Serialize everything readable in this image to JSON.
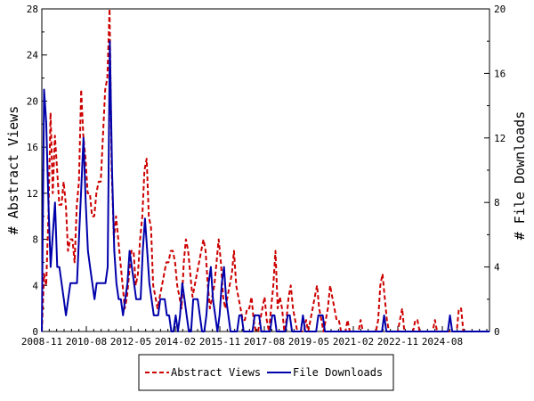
{
  "chart_data": {
    "type": "line",
    "ylabel": "# Abstract Views",
    "y2label": "# File Downloads",
    "x_tick_labels": [
      "2008-11",
      "2010-08",
      "2012-05",
      "2014-02",
      "2015-11",
      "2017-08",
      "2019-05",
      "2021-02",
      "2022-11",
      "2024-08"
    ],
    "y_ticks": [
      "0",
      "4",
      "8",
      "12",
      "16",
      "20",
      "24",
      "28"
    ],
    "y2_ticks": [
      "0",
      "4",
      "8",
      "12",
      "16",
      "20"
    ],
    "ylim": [
      0,
      28
    ],
    "y2lim": [
      0,
      20
    ],
    "xlim": [
      0,
      200
    ],
    "grid": false,
    "legend_position": "bottom",
    "series": [
      {
        "name": "Abstract Views",
        "axis": "left",
        "color": "#cc0000",
        "style": "dashed",
        "values": [
          0,
          5,
          4,
          10,
          19,
          12,
          17,
          14,
          11,
          11,
          13,
          11,
          7,
          8,
          8,
          6,
          11,
          13,
          21,
          17,
          15,
          12,
          12,
          10,
          10,
          12,
          13,
          13,
          17,
          21,
          22,
          28,
          14,
          8,
          10,
          8,
          6,
          4,
          2,
          3,
          5,
          7,
          7,
          4,
          5,
          8,
          10,
          14,
          15,
          10,
          9,
          4,
          3,
          2,
          3,
          4,
          5,
          6,
          6,
          7,
          7,
          6,
          4,
          3,
          2,
          6,
          8,
          7,
          5,
          3,
          4,
          5,
          6,
          7,
          8,
          7,
          4,
          2,
          3,
          4,
          6,
          8,
          6,
          3,
          2,
          3,
          4,
          5,
          7,
          4,
          3,
          2,
          1,
          1,
          2,
          2,
          3,
          1,
          0,
          0,
          1,
          2,
          3,
          1,
          0,
          2,
          4,
          7,
          2,
          3,
          2,
          0,
          1,
          3,
          4,
          2,
          1,
          0,
          0,
          0,
          0,
          1,
          0,
          1,
          2,
          3,
          4,
          2,
          1,
          0,
          1,
          2,
          4,
          3,
          2,
          1,
          1,
          0,
          0,
          0,
          1,
          0,
          0,
          0,
          0,
          0,
          1,
          0,
          0,
          0,
          0,
          0,
          0,
          0,
          1,
          4,
          5,
          3,
          1,
          0,
          0,
          0,
          0,
          0,
          1,
          2,
          0,
          0,
          0,
          0,
          0,
          1,
          1,
          0,
          0,
          0,
          0,
          0,
          0,
          0,
          1,
          0,
          0,
          0,
          0,
          0,
          0,
          0,
          0,
          0,
          0,
          2,
          2,
          0,
          0,
          0,
          0,
          0,
          0,
          0,
          0,
          0,
          0,
          0,
          0,
          0
        ]
      },
      {
        "name": "File Downloads",
        "axis": "right",
        "color": "#0000aa",
        "style": "solid",
        "values": [
          0,
          15,
          13,
          8,
          4,
          6,
          8,
          4,
          4,
          3,
          2,
          1,
          2,
          3,
          3,
          3,
          3,
          6,
          9,
          12,
          8,
          5,
          4,
          3,
          2,
          3,
          3,
          3,
          3,
          3,
          4,
          18,
          10,
          5,
          3,
          2,
          2,
          1,
          2,
          3,
          5,
          4,
          3,
          2,
          2,
          2,
          5,
          7,
          5,
          3,
          2,
          1,
          1,
          1,
          2,
          2,
          2,
          1,
          1,
          0,
          0,
          1,
          0,
          1,
          3,
          2,
          1,
          0,
          0,
          2,
          2,
          2,
          1,
          0,
          0,
          1,
          3,
          4,
          2,
          1,
          0,
          1,
          3,
          4,
          2,
          1,
          0,
          0,
          0,
          0,
          1,
          1,
          0,
          0,
          0,
          0,
          0,
          1,
          1,
          1,
          0,
          0,
          0,
          0,
          0,
          1,
          1,
          0,
          0,
          0,
          0,
          0,
          1,
          1,
          0,
          0,
          0,
          0,
          0,
          1,
          0,
          0,
          0,
          0,
          0,
          0,
          1,
          1,
          1,
          0,
          0,
          0,
          0,
          0,
          0,
          0,
          0,
          0,
          0,
          0,
          0,
          0,
          0,
          0,
          0,
          0,
          0,
          0,
          0,
          0,
          0,
          0,
          0,
          0,
          0,
          0,
          1,
          0,
          0,
          0,
          0,
          0,
          0,
          0,
          0,
          0,
          0,
          0,
          0,
          0,
          0,
          0,
          0,
          0,
          0,
          0,
          0,
          0,
          0,
          0,
          0,
          0,
          0,
          0,
          0,
          0,
          1,
          0,
          0,
          0,
          0,
          0,
          0,
          0,
          0,
          0,
          0,
          0,
          0,
          0,
          0,
          0,
          0,
          0,
          0
        ]
      }
    ]
  },
  "legend": {
    "items": [
      {
        "label": "Abstract Views",
        "color": "#cc0000",
        "style": "dashed"
      },
      {
        "label": "File Downloads",
        "color": "#0000aa",
        "style": "solid"
      }
    ]
  }
}
